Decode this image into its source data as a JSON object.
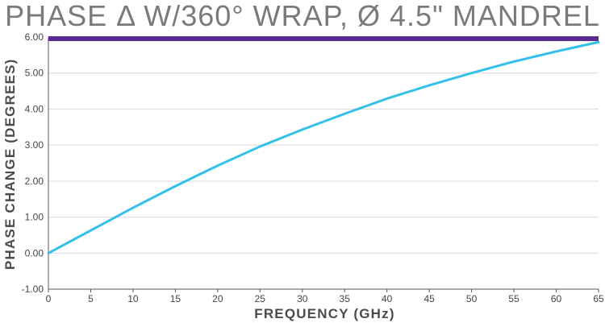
{
  "chart_data": {
    "type": "line",
    "title": "PHASE Δ W/360° WRAP, Ø 4.5\" MANDREL",
    "xlabel": "FREQUENCY (GHz)",
    "ylabel": "PHASE CHANGE (DEGREES)",
    "xlim": [
      0,
      65
    ],
    "ylim": [
      -1.0,
      6.0
    ],
    "x_ticks": [
      0,
      5,
      10,
      15,
      20,
      25,
      30,
      35,
      40,
      45,
      50,
      55,
      60,
      65
    ],
    "x_tick_labels": [
      "0",
      "5",
      "10",
      "15",
      "20",
      "25",
      "30",
      "35",
      "40",
      "45",
      "50",
      "55",
      "60",
      "65"
    ],
    "y_ticks": [
      -1.0,
      0.0,
      1.0,
      2.0,
      3.0,
      4.0,
      5.0,
      6.0
    ],
    "y_tick_labels": [
      "-1.00",
      "0.00",
      "1.00",
      "2.00",
      "3.00",
      "4.00",
      "5.00",
      "6.00"
    ],
    "grid": "horizontal",
    "colors": {
      "curve": "#35c0ea",
      "top_band": "#5b2a91",
      "grid": "#d9d9d9",
      "axis": "#555555"
    },
    "series": [
      {
        "x": [
          0,
          5,
          10,
          15,
          20,
          25,
          30,
          35,
          40,
          45,
          50,
          55,
          60,
          65
        ],
        "values": [
          0.0,
          0.63,
          1.26,
          1.86,
          2.43,
          2.96,
          3.43,
          3.87,
          4.29,
          4.66,
          5.0,
          5.32,
          5.6,
          5.86
        ]
      }
    ]
  }
}
